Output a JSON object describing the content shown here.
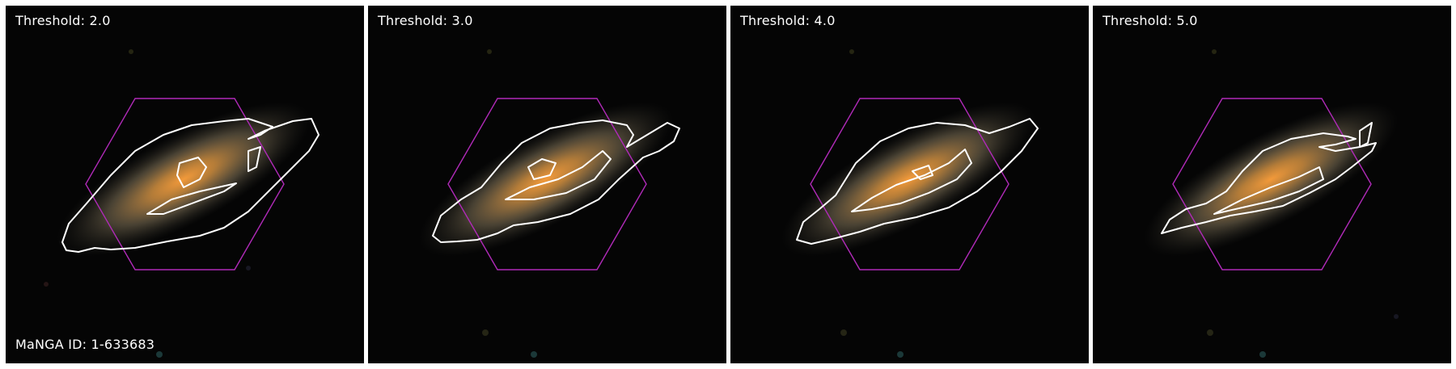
{
  "figure": {
    "manga_id_label": "MaNGA ID: 1-633683",
    "panels": [
      {
        "threshold_label": "Threshold: 2.0",
        "threshold": 2.0
      },
      {
        "threshold_label": "Threshold: 3.0",
        "threshold": 3.0
      },
      {
        "threshold_label": "Threshold: 4.0",
        "threshold": 4.0
      },
      {
        "threshold_label": "Threshold: 5.0",
        "threshold": 5.0
      }
    ]
  },
  "colors": {
    "background": "#050505",
    "contour": "#ffffff",
    "ifu_hexagon": "#b02ab8",
    "galaxy_core": "#f08a2a",
    "galaxy_halo": "#c8b08a"
  }
}
